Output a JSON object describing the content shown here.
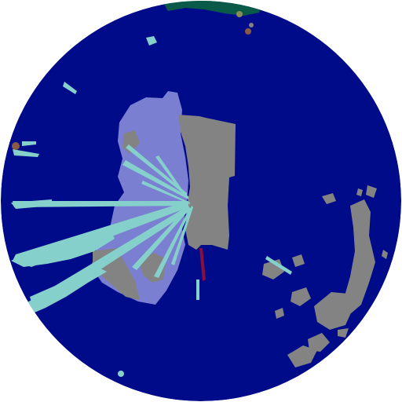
{
  "scan": {
    "colors": {
      "background": "#ffffff",
      "field": "#000b8a",
      "light_purple": "#7b7fd1",
      "cyan": "#86d0cc",
      "gray": "#838383",
      "dark_red": "#8a0f3c",
      "dark_green": "#0a5a4a",
      "brown": "#8a5a45",
      "olive": "#8a8a55"
    },
    "icons": [
      "lidar-center-gray-block",
      "ray-fan-cyan",
      "scatter-gray-right"
    ]
  }
}
